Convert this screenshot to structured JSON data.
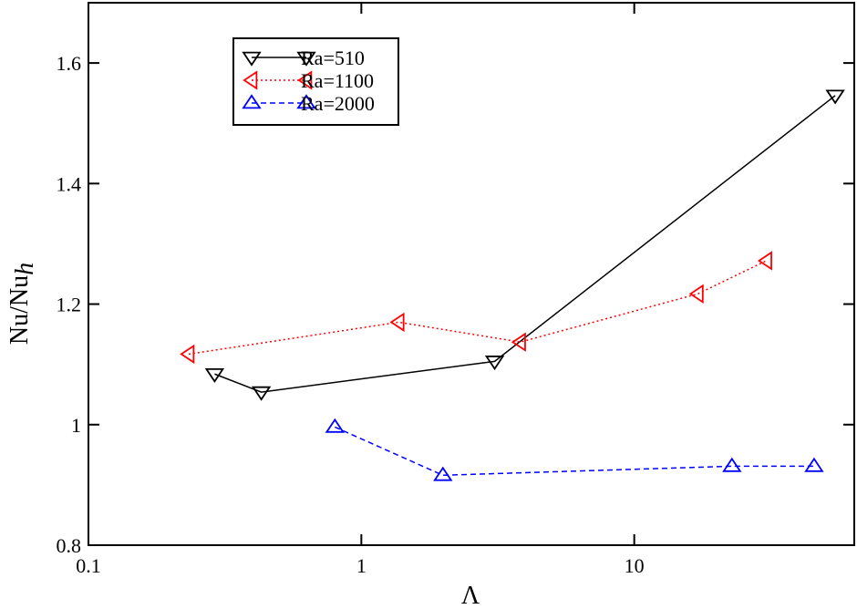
{
  "chart_data": {
    "type": "line",
    "xlabel": "Λ",
    "ylabel": "Nu/Nu",
    "ylabel_sub": "h",
    "xscale": "log",
    "xlim": [
      0.1,
      64
    ],
    "xticks": [
      0.1,
      1,
      10
    ],
    "ylim": [
      0.8,
      1.7
    ],
    "yticks": [
      0.8,
      1,
      1.2,
      1.4,
      1.6
    ],
    "legend": "upper left",
    "series": [
      {
        "name": "Ra=510",
        "color": "#000000",
        "marker": "triangle-down",
        "dash": "solid",
        "x": [
          0.29,
          0.43,
          3.08,
          54.5
        ],
        "values": [
          1.084,
          1.054,
          1.105,
          1.546
        ]
      },
      {
        "name": "Ra=1100",
        "color": "#ff0000",
        "marker": "triangle-left",
        "dash": "dotted",
        "x": [
          0.233,
          1.37,
          3.82,
          17.1,
          30.5
        ],
        "values": [
          1.117,
          1.17,
          1.137,
          1.217,
          1.272
        ]
      },
      {
        "name": "Ra=2000",
        "color": "#0000ff",
        "marker": "triangle-up",
        "dash": "dashed",
        "x": [
          0.8,
          1.99,
          22.8,
          45.6
        ],
        "values": [
          0.996,
          0.916,
          0.931,
          0.931
        ]
      }
    ]
  }
}
